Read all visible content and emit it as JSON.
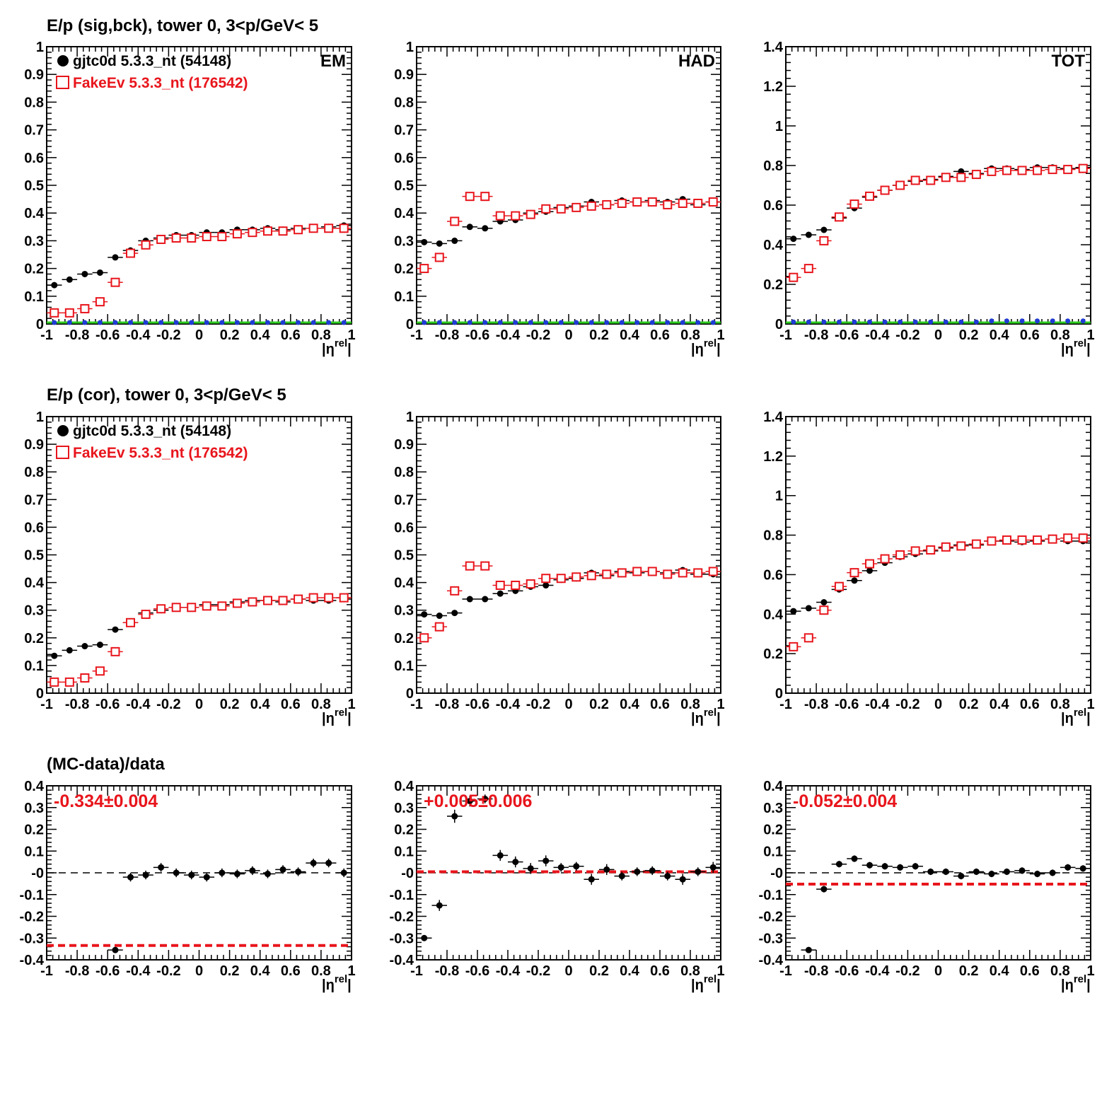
{
  "colors": {
    "data": "#000000",
    "mc": "#e8151c",
    "sigbck_extra_blue": "#1f3cd6",
    "sigbck_extra_green": "#2ecc1f",
    "meanline": "#e8151c"
  },
  "row_titles": [
    "E/p (sig,bck), tower 0,  3<p/GeV< 5",
    "E/p (cor), tower 0,  3<p/GeV< 5",
    "(MC-data)/data"
  ],
  "legend": {
    "data_label": "gjtc0d 5.3.3_nt (54148)",
    "mc_label": "FakeEv 5.3.3_nt (176542)"
  },
  "corner_labels": [
    "EM",
    "HAD",
    "TOT"
  ],
  "xaxis": {
    "label_main": "|η",
    "label_sup": "rel",
    "label_end": "|",
    "ticks": [
      "-1",
      "-0.8",
      "-0.6",
      "-0.4",
      "-0.2",
      "0",
      "0.2",
      "0.4",
      "0.6",
      "0.8",
      "1"
    ]
  },
  "chart_data": [
    {
      "type": "scatter",
      "panel": "EM sig,bck",
      "xlabel": "|η^rel|",
      "xlim": [
        -1,
        1
      ],
      "ylim": [
        0,
        1
      ],
      "yticks": [
        "0",
        "0.1",
        "0.2",
        "0.3",
        "0.4",
        "0.5",
        "0.6",
        "0.7",
        "0.8",
        "0.9",
        "1"
      ],
      "x": [
        -0.95,
        -0.85,
        -0.75,
        -0.65,
        -0.55,
        -0.45,
        -0.35,
        -0.25,
        -0.15,
        -0.05,
        0.05,
        0.15,
        0.25,
        0.35,
        0.45,
        0.55,
        0.65,
        0.75,
        0.85,
        0.95
      ],
      "series": [
        {
          "name": "gjtc0d 5.3.3_nt (54148)",
          "values": [
            0.14,
            0.16,
            0.18,
            0.185,
            0.24,
            0.265,
            0.3,
            0.31,
            0.32,
            0.32,
            0.33,
            0.33,
            0.34,
            0.34,
            0.345,
            0.34,
            0.345,
            0.345,
            0.35,
            0.355
          ]
        },
        {
          "name": "FakeEv 5.3.3_nt (176542)",
          "values": [
            0.04,
            0.04,
            0.055,
            0.08,
            0.15,
            0.255,
            0.285,
            0.305,
            0.31,
            0.31,
            0.315,
            0.315,
            0.325,
            0.33,
            0.335,
            0.335,
            0.34,
            0.345,
            0.345,
            0.345
          ]
        },
        {
          "values": [
            0.005,
            0.005,
            0.005,
            0.005,
            0.005,
            0.005,
            0.005,
            0.005,
            0.005,
            0.005,
            0.005,
            0.005,
            0.005,
            0.005,
            0.005,
            0.005,
            0.005,
            0.005,
            0.005,
            0.005
          ]
        },
        {
          "values": [
            0,
            0,
            0,
            0,
            0,
            0,
            0,
            0,
            0,
            0,
            0,
            0,
            0,
            0,
            0,
            0,
            0,
            0,
            0,
            0
          ]
        }
      ]
    },
    {
      "type": "scatter",
      "panel": "HAD sig,bck",
      "xlabel": "|η^rel|",
      "xlim": [
        -1,
        1
      ],
      "ylim": [
        0,
        1
      ],
      "yticks": [
        "0",
        "0.1",
        "0.2",
        "0.3",
        "0.4",
        "0.5",
        "0.6",
        "0.7",
        "0.8",
        "0.9",
        "1"
      ],
      "x": [
        -0.95,
        -0.85,
        -0.75,
        -0.65,
        -0.55,
        -0.45,
        -0.35,
        -0.25,
        -0.15,
        -0.05,
        0.05,
        0.15,
        0.25,
        0.35,
        0.45,
        0.55,
        0.65,
        0.75,
        0.85,
        0.95
      ],
      "series": [
        {
          "name": "gjtc0d 5.3.3_nt (54148)",
          "values": [
            0.295,
            0.29,
            0.3,
            0.35,
            0.345,
            0.37,
            0.375,
            0.4,
            0.405,
            0.42,
            0.425,
            0.44,
            0.43,
            0.445,
            0.44,
            0.445,
            0.44,
            0.45,
            0.43,
            0.44
          ]
        },
        {
          "name": "FakeEv 5.3.3_nt (176542)",
          "values": [
            0.2,
            0.24,
            0.37,
            0.46,
            0.46,
            0.39,
            0.39,
            0.395,
            0.415,
            0.415,
            0.42,
            0.425,
            0.43,
            0.435,
            0.44,
            0.44,
            0.43,
            0.435,
            0.435,
            0.44
          ]
        },
        {
          "values": [
            0.005,
            0.005,
            0.005,
            0.005,
            0.005,
            0.005,
            0.005,
            0.005,
            0.005,
            0.005,
            0.005,
            0.005,
            0.005,
            0.005,
            0.005,
            0.005,
            0.005,
            0.005,
            0.005,
            0.005
          ]
        },
        {
          "values": [
            0,
            0,
            0,
            0,
            0,
            0,
            0,
            0,
            0,
            0,
            0,
            0,
            0,
            0,
            0,
            0,
            0,
            0,
            0,
            0
          ]
        }
      ]
    },
    {
      "type": "scatter",
      "panel": "TOT sig,bck",
      "xlabel": "|η^rel|",
      "xlim": [
        -1,
        1
      ],
      "ylim": [
        0,
        1.4
      ],
      "yticks": [
        "0",
        "0.2",
        "0.4",
        "0.6",
        "0.8",
        "1",
        "1.2",
        "1.4"
      ],
      "x": [
        -0.95,
        -0.85,
        -0.75,
        -0.65,
        -0.55,
        -0.45,
        -0.35,
        -0.25,
        -0.15,
        -0.05,
        0.05,
        0.15,
        0.25,
        0.35,
        0.45,
        0.55,
        0.65,
        0.75,
        0.85,
        0.95
      ],
      "series": [
        {
          "name": "gjtc0d 5.3.3_nt (54148)",
          "values": [
            0.43,
            0.45,
            0.475,
            0.535,
            0.585,
            0.64,
            0.675,
            0.7,
            0.72,
            0.73,
            0.745,
            0.77,
            0.76,
            0.785,
            0.785,
            0.78,
            0.79,
            0.79,
            0.785,
            0.79
          ]
        },
        {
          "name": "FakeEv 5.3.3_nt (176542)",
          "values": [
            0.235,
            0.28,
            0.42,
            0.54,
            0.605,
            0.645,
            0.675,
            0.7,
            0.725,
            0.725,
            0.74,
            0.74,
            0.755,
            0.77,
            0.775,
            0.775,
            0.775,
            0.78,
            0.78,
            0.785
          ]
        },
        {
          "values": [
            0.01,
            0.01,
            0.01,
            0.01,
            0.01,
            0.01,
            0.01,
            0.01,
            0.01,
            0.01,
            0.01,
            0.01,
            0.01,
            0.015,
            0.015,
            0.015,
            0.015,
            0.015,
            0.015,
            0.015
          ]
        },
        {
          "values": [
            0,
            0,
            0,
            0,
            0,
            0,
            0,
            0,
            0,
            0,
            0,
            0,
            0,
            0,
            0,
            0,
            0,
            0,
            0,
            0
          ]
        }
      ]
    },
    {
      "type": "scatter",
      "panel": "EM cor",
      "xlabel": "|η^rel|",
      "xlim": [
        -1,
        1
      ],
      "ylim": [
        0,
        1
      ],
      "yticks": [
        "0",
        "0.1",
        "0.2",
        "0.3",
        "0.4",
        "0.5",
        "0.6",
        "0.7",
        "0.8",
        "0.9",
        "1"
      ],
      "x": [
        -0.95,
        -0.85,
        -0.75,
        -0.65,
        -0.55,
        -0.45,
        -0.35,
        -0.25,
        -0.15,
        -0.05,
        0.05,
        0.15,
        0.25,
        0.35,
        0.45,
        0.55,
        0.65,
        0.75,
        0.85,
        0.95
      ],
      "series": [
        {
          "name": "gjtc0d 5.3.3_nt (54148)",
          "values": [
            0.135,
            0.155,
            0.17,
            0.175,
            0.23,
            0.255,
            0.29,
            0.3,
            0.31,
            0.31,
            0.32,
            0.32,
            0.33,
            0.335,
            0.335,
            0.33,
            0.34,
            0.335,
            0.335,
            0.345
          ]
        },
        {
          "name": "FakeEv 5.3.3_nt (176542)",
          "values": [
            0.04,
            0.04,
            0.055,
            0.08,
            0.15,
            0.255,
            0.285,
            0.305,
            0.31,
            0.31,
            0.315,
            0.315,
            0.325,
            0.33,
            0.335,
            0.335,
            0.34,
            0.345,
            0.345,
            0.345
          ]
        }
      ]
    },
    {
      "type": "scatter",
      "panel": "HAD cor",
      "xlabel": "|η^rel|",
      "xlim": [
        -1,
        1
      ],
      "ylim": [
        0,
        1
      ],
      "yticks": [
        "0",
        "0.1",
        "0.2",
        "0.3",
        "0.4",
        "0.5",
        "0.6",
        "0.7",
        "0.8",
        "0.9",
        "1"
      ],
      "x": [
        -0.95,
        -0.85,
        -0.75,
        -0.65,
        -0.55,
        -0.45,
        -0.35,
        -0.25,
        -0.15,
        -0.05,
        0.05,
        0.15,
        0.25,
        0.35,
        0.45,
        0.55,
        0.65,
        0.75,
        0.85,
        0.95
      ],
      "series": [
        {
          "name": "gjtc0d 5.3.3_nt (54148)",
          "values": [
            0.285,
            0.28,
            0.29,
            0.34,
            0.34,
            0.36,
            0.37,
            0.385,
            0.39,
            0.41,
            0.415,
            0.435,
            0.425,
            0.44,
            0.435,
            0.44,
            0.435,
            0.445,
            0.43,
            0.43
          ]
        },
        {
          "name": "FakeEv 5.3.3_nt (176542)",
          "values": [
            0.2,
            0.24,
            0.37,
            0.46,
            0.46,
            0.39,
            0.39,
            0.395,
            0.415,
            0.415,
            0.42,
            0.425,
            0.43,
            0.435,
            0.44,
            0.44,
            0.43,
            0.435,
            0.435,
            0.44
          ]
        }
      ]
    },
    {
      "type": "scatter",
      "panel": "TOT cor",
      "xlabel": "|η^rel|",
      "xlim": [
        -1,
        1
      ],
      "ylim": [
        0,
        1.4
      ],
      "yticks": [
        "0",
        "0.2",
        "0.4",
        "0.6",
        "0.8",
        "1",
        "1.2",
        "1.4"
      ],
      "x": [
        -0.95,
        -0.85,
        -0.75,
        -0.65,
        -0.55,
        -0.45,
        -0.35,
        -0.25,
        -0.15,
        -0.05,
        0.05,
        0.15,
        0.25,
        0.35,
        0.45,
        0.55,
        0.65,
        0.75,
        0.85,
        0.95
      ],
      "series": [
        {
          "name": "gjtc0d 5.3.3_nt (54148)",
          "values": [
            0.415,
            0.43,
            0.46,
            0.525,
            0.57,
            0.62,
            0.66,
            0.69,
            0.705,
            0.72,
            0.735,
            0.75,
            0.75,
            0.77,
            0.77,
            0.765,
            0.77,
            0.78,
            0.77,
            0.77
          ]
        },
        {
          "name": "FakeEv 5.3.3_nt (176542)",
          "values": [
            0.235,
            0.28,
            0.42,
            0.54,
            0.61,
            0.655,
            0.68,
            0.7,
            0.72,
            0.725,
            0.74,
            0.745,
            0.755,
            0.77,
            0.775,
            0.775,
            0.775,
            0.78,
            0.785,
            0.785
          ]
        }
      ]
    },
    {
      "type": "scatter",
      "panel": "EM ratio",
      "xlabel": "|η^rel|",
      "xlim": [
        -1,
        1
      ],
      "ylim": [
        -0.4,
        0.4
      ],
      "yticks": [
        "-0.4",
        "-0.3",
        "-0.2",
        "-0.1",
        "-0",
        "0.1",
        "0.2",
        "0.3",
        "0.4"
      ],
      "mean_label": "-0.334±0.004",
      "mean_value": -0.334,
      "x": [
        -0.55,
        -0.45,
        -0.35,
        -0.25,
        -0.15,
        -0.05,
        0.05,
        0.15,
        0.25,
        0.35,
        0.45,
        0.55,
        0.65,
        0.75,
        0.85,
        0.95
      ],
      "series": [
        {
          "name": "(MC-data)/data",
          "values": [
            -0.355,
            -0.02,
            -0.01,
            0.025,
            0.0,
            -0.01,
            -0.02,
            0.0,
            -0.005,
            0.01,
            -0.005,
            0.015,
            0.005,
            0.045,
            0.045,
            0.0
          ],
          "errors": [
            0.006,
            0.02,
            0.02,
            0.02,
            0.02,
            0.02,
            0.02,
            0.02,
            0.02,
            0.02,
            0.02,
            0.02,
            0.02,
            0.02,
            0.02,
            0.02
          ]
        }
      ]
    },
    {
      "type": "scatter",
      "panel": "HAD ratio",
      "xlabel": "|η^rel|",
      "xlim": [
        -1,
        1
      ],
      "ylim": [
        -0.4,
        0.4
      ],
      "yticks": [
        "-0.4",
        "-0.3",
        "-0.2",
        "-0.1",
        "-0",
        "0.1",
        "0.2",
        "0.3",
        "0.4"
      ],
      "mean_label": "+0.005±0.006",
      "mean_value": 0.005,
      "x": [
        -0.95,
        -0.85,
        -0.75,
        -0.65,
        -0.55,
        -0.45,
        -0.35,
        -0.25,
        -0.15,
        -0.05,
        0.05,
        0.15,
        0.25,
        0.35,
        0.45,
        0.55,
        0.65,
        0.75,
        0.85,
        0.95
      ],
      "series": [
        {
          "name": "(MC-data)/data",
          "values": [
            -0.3,
            -0.15,
            0.26,
            0.33,
            0.34,
            0.08,
            0.05,
            0.02,
            0.055,
            0.025,
            0.03,
            -0.03,
            0.015,
            -0.015,
            0.005,
            0.01,
            -0.015,
            -0.03,
            0.005,
            0.025
          ],
          "errors": [
            0.012,
            0.025,
            0.03,
            0.025,
            0.02,
            0.025,
            0.025,
            0.025,
            0.025,
            0.02,
            0.02,
            0.025,
            0.025,
            0.02,
            0.02,
            0.02,
            0.02,
            0.025,
            0.02,
            0.025
          ]
        }
      ]
    },
    {
      "type": "scatter",
      "panel": "TOT ratio",
      "xlabel": "|η^rel|",
      "xlim": [
        -1,
        1
      ],
      "ylim": [
        -0.4,
        0.4
      ],
      "yticks": [
        "-0.4",
        "-0.3",
        "-0.2",
        "-0.1",
        "-0",
        "0.1",
        "0.2",
        "0.3",
        "0.4"
      ],
      "mean_label": "-0.052±0.004",
      "mean_value": -0.052,
      "x": [
        -0.85,
        -0.75,
        -0.65,
        -0.55,
        -0.45,
        -0.35,
        -0.25,
        -0.15,
        -0.05,
        0.05,
        0.15,
        0.25,
        0.35,
        0.45,
        0.55,
        0.65,
        0.75,
        0.85,
        0.95
      ],
      "series": [
        {
          "name": "(MC-data)/data",
          "values": [
            -0.355,
            -0.075,
            0.04,
            0.065,
            0.035,
            0.03,
            0.025,
            0.03,
            0.005,
            0.005,
            -0.015,
            0.005,
            -0.005,
            0.005,
            0.01,
            -0.005,
            0.0,
            0.025,
            0.02
          ],
          "errors": [
            0.006,
            0.015,
            0.015,
            0.015,
            0.015,
            0.015,
            0.015,
            0.015,
            0.015,
            0.015,
            0.015,
            0.015,
            0.015,
            0.015,
            0.015,
            0.015,
            0.015,
            0.015,
            0.015
          ]
        }
      ]
    }
  ]
}
